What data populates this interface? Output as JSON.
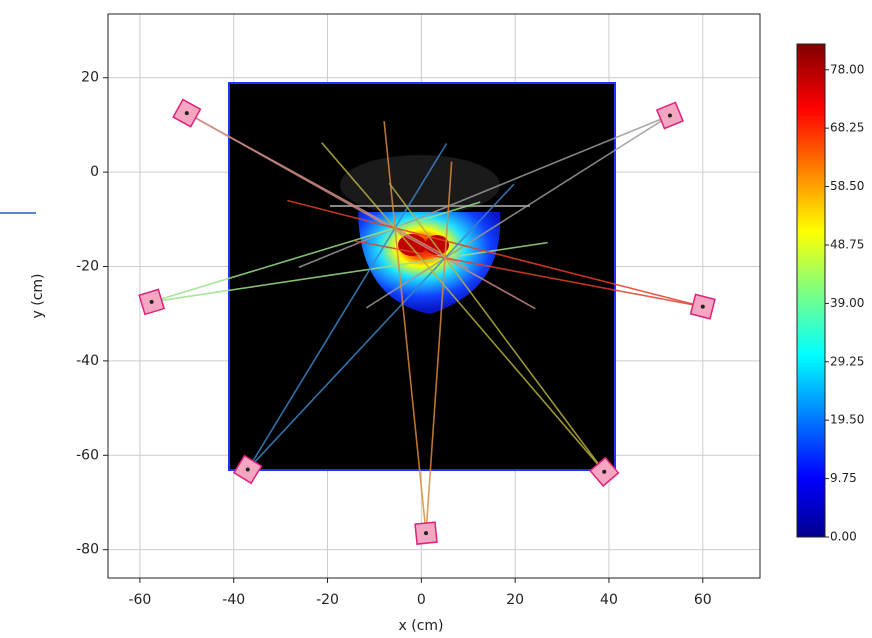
{
  "chart_data": {
    "type": "scatter",
    "x_label": "x (cm)",
    "y_label": "y (cm)",
    "x": [
      -50,
      53,
      -57.5,
      60,
      -37,
      39,
      1
    ],
    "values": [
      12.5,
      12,
      -27.5,
      -28.5,
      -63,
      -63.5,
      -76.5
    ],
    "beam_colors": [
      "#c98a80",
      "#9a9a9a",
      "#9be08a",
      "#e0402a",
      "#3a86c8",
      "#b8b040",
      "#d98a3a"
    ],
    "color": "#f5a6c0",
    "xlim": [
      -66.8,
      72.2
    ],
    "ylim": [
      -86,
      33.5
    ],
    "xticks": [
      -60,
      -40,
      -20,
      0,
      20,
      40,
      60
    ],
    "yticks": [
      -80,
      -60,
      -40,
      -20,
      0,
      20
    ],
    "grid": true,
    "clim": [
      0,
      82.3
    ],
    "cticks": [
      {
        "value": 0,
        "label": "0.00"
      },
      {
        "value": 9.75,
        "label": "9.75"
      },
      {
        "value": 19.5,
        "label": "19.50"
      },
      {
        "value": 29.25,
        "label": "29.25"
      },
      {
        "value": 39,
        "label": "39.00"
      },
      {
        "value": 48.75,
        "label": "48.75"
      },
      {
        "value": 58.5,
        "label": "58.50"
      },
      {
        "value": 68.25,
        "label": "68.25"
      },
      {
        "value": 78,
        "label": "78.00"
      }
    ]
  }
}
